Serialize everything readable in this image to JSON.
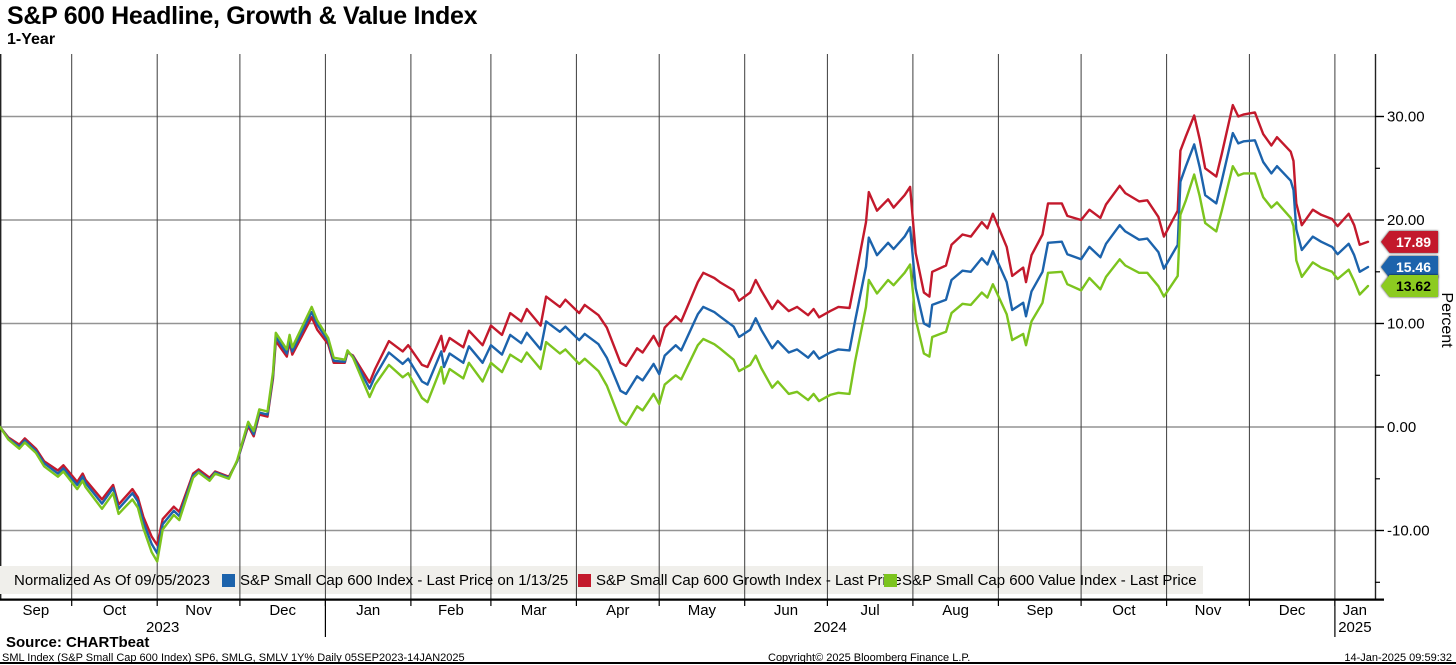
{
  "header": {
    "title": "S&P 600 Headline, Growth & Value Index",
    "subtitle": "1-Year"
  },
  "legend": {
    "normalized_label": "Normalized As Of 09/05/2023",
    "items": [
      {
        "label": "S&P Small Cap 600 Index - Last Price on 1/13/25",
        "color": "#1c63ac"
      },
      {
        "label": "S&P Small Cap 600 Growth Index - Last Price",
        "color": "#c3192c"
      },
      {
        "label": "S&P Small Cap 600 Value Index - Last Price",
        "color": "#7cc41e"
      }
    ]
  },
  "price_labels": [
    {
      "value": "17.89",
      "color": "#c3192c",
      "text_color": "#ffffff"
    },
    {
      "value": "15.46",
      "color": "#1c63ac",
      "text_color": "#ffffff"
    },
    {
      "value": "13.62",
      "color": "#8ccb20",
      "text_color": "#000000"
    }
  ],
  "footer": {
    "source": "Source: CHARTbeat",
    "description": "SML Index (S&P Small Cap 600 Index) SP6, SMLG, SMLV 1Y%  Daily 05SEP2023-14JAN2025",
    "copyright": "Copyright© 2025 Bloomberg Finance L.P.",
    "timestamp": "14-Jan-2025 09:59:32"
  },
  "chart_data": {
    "type": "line",
    "title": "S&P 600 Headline, Growth & Value Index",
    "period": "1-Year",
    "ylabel": "Percent",
    "grid": true,
    "legend_position": "bottom",
    "ylim": [
      -16.6,
      35.2
    ],
    "x_start": "2023-09-05",
    "x_end": "2025-01-14",
    "y_ticks_major": [
      {
        "v": 30,
        "label": "30.00"
      },
      {
        "v": 20,
        "label": "20.00"
      },
      {
        "v": 10,
        "label": "10.00"
      },
      {
        "v": 0,
        "label": "0.00"
      },
      {
        "v": -10,
        "label": "-10.00"
      }
    ],
    "y_ticks_minor": [
      25,
      15,
      5,
      -5,
      -15
    ],
    "month_labels": [
      "Sep",
      "Oct",
      "Nov",
      "Dec",
      "Jan",
      "Feb",
      "Mar",
      "Apr",
      "May",
      "Jun",
      "Jul",
      "Aug",
      "Sep",
      "Oct",
      "Nov",
      "Dec",
      "Jan"
    ],
    "year_labels": [
      "2023",
      "2024",
      "2025"
    ],
    "dates": [
      "2023-09-05",
      "2023-09-08",
      "2023-09-12",
      "2023-09-14",
      "2023-09-18",
      "2023-09-21",
      "2023-09-26",
      "2023-09-28",
      "2023-10-03",
      "2023-10-05",
      "2023-10-06",
      "2023-10-12",
      "2023-10-16",
      "2023-10-18",
      "2023-10-23",
      "2023-10-25",
      "2023-10-27",
      "2023-10-30",
      "2023-11-01",
      "2023-11-03",
      "2023-11-07",
      "2023-11-09",
      "2023-11-14",
      "2023-11-16",
      "2023-11-20",
      "2023-11-22",
      "2023-11-27",
      "2023-11-30",
      "2023-12-04",
      "2023-12-06",
      "2023-12-08",
      "2023-12-11",
      "2023-12-13",
      "2023-12-14",
      "2023-12-18",
      "2023-12-19",
      "2023-12-20",
      "2023-12-27",
      "2023-12-29",
      "2024-01-02",
      "2024-01-04",
      "2024-01-08",
      "2024-01-09",
      "2024-01-11",
      "2024-01-17",
      "2024-01-19",
      "2024-01-24",
      "2024-01-29",
      "2024-01-31",
      "2024-02-05",
      "2024-02-07",
      "2024-02-12",
      "2024-02-13",
      "2024-02-15",
      "2024-02-20",
      "2024-02-22",
      "2024-02-27",
      "2024-03-01",
      "2024-03-05",
      "2024-03-08",
      "2024-03-12",
      "2024-03-14",
      "2024-03-19",
      "2024-03-21",
      "2024-03-26",
      "2024-03-28",
      "2024-04-02",
      "2024-04-04",
      "2024-04-09",
      "2024-04-12",
      "2024-04-17",
      "2024-04-19",
      "2024-04-23",
      "2024-04-25",
      "2024-04-29",
      "2024-05-01",
      "2024-05-03",
      "2024-05-07",
      "2024-05-09",
      "2024-05-15",
      "2024-05-17",
      "2024-05-21",
      "2024-05-23",
      "2024-05-28",
      "2024-05-30",
      "2024-06-03",
      "2024-06-05",
      "2024-06-07",
      "2024-06-11",
      "2024-06-13",
      "2024-06-17",
      "2024-06-20",
      "2024-06-24",
      "2024-06-26",
      "2024-06-28",
      "2024-07-02",
      "2024-07-05",
      "2024-07-09",
      "2024-07-11",
      "2024-07-15",
      "2024-07-16",
      "2024-07-19",
      "2024-07-23",
      "2024-07-25",
      "2024-07-29",
      "2024-07-31",
      "2024-08-02",
      "2024-08-05",
      "2024-08-07",
      "2024-08-08",
      "2024-08-13",
      "2024-08-15",
      "2024-08-19",
      "2024-08-22",
      "2024-08-26",
      "2024-08-28",
      "2024-08-30",
      "2024-09-04",
      "2024-09-06",
      "2024-09-10",
      "2024-09-11",
      "2024-09-13",
      "2024-09-17",
      "2024-09-19",
      "2024-09-24",
      "2024-09-26",
      "2024-10-01",
      "2024-10-04",
      "2024-10-08",
      "2024-10-10",
      "2024-10-15",
      "2024-10-17",
      "2024-10-22",
      "2024-10-25",
      "2024-10-29",
      "2024-10-31",
      "2024-11-05",
      "2024-11-06",
      "2024-11-08",
      "2024-11-11",
      "2024-11-13",
      "2024-11-15",
      "2024-11-19",
      "2024-11-21",
      "2024-11-25",
      "2024-11-27",
      "2024-11-29",
      "2024-12-03",
      "2024-12-06",
      "2024-12-09",
      "2024-12-11",
      "2024-12-16",
      "2024-12-17",
      "2024-12-18",
      "2024-12-20",
      "2024-12-24",
      "2024-12-27",
      "2024-12-31",
      "2025-01-02",
      "2025-01-06",
      "2025-01-08",
      "2025-01-10",
      "2025-01-13"
    ],
    "series": [
      {
        "id": "sp-small-cap-600",
        "name": "S&P Small Cap 600 Index",
        "color": "#1c63ac",
        "last_price": 15.46,
        "values": [
          0.0,
          -1.1,
          -1.9,
          -1.3,
          -2.3,
          -3.5,
          -4.5,
          -4.0,
          -5.6,
          -4.8,
          -5.4,
          -7.4,
          -5.9,
          -7.9,
          -6.4,
          -7.2,
          -9.2,
          -11.3,
          -12.2,
          -9.4,
          -8.1,
          -8.6,
          -4.7,
          -4.3,
          -5.1,
          -4.4,
          -4.9,
          -3.3,
          0.3,
          -0.7,
          1.4,
          1.2,
          5.0,
          8.7,
          7.1,
          8.6,
          7.3,
          11.1,
          9.9,
          8.3,
          6.4,
          6.3,
          7.3,
          6.8,
          3.7,
          4.9,
          7.2,
          6.1,
          6.6,
          4.4,
          4.1,
          7.3,
          5.8,
          7.1,
          6.2,
          7.8,
          6.2,
          7.9,
          7.0,
          8.9,
          8.1,
          9.1,
          7.5,
          10.2,
          9.2,
          9.7,
          8.4,
          9.0,
          8.0,
          6.7,
          3.5,
          3.2,
          4.9,
          4.5,
          6.1,
          5.1,
          6.9,
          7.9,
          7.4,
          10.9,
          11.6,
          11.1,
          10.7,
          9.7,
          8.7,
          9.4,
          10.5,
          9.4,
          7.6,
          8.3,
          7.2,
          7.5,
          6.7,
          7.3,
          6.6,
          7.2,
          7.5,
          7.4,
          10.2,
          15.5,
          18.3,
          16.6,
          17.8,
          17.2,
          18.4,
          19.3,
          13.4,
          10.0,
          9.7,
          11.8,
          12.3,
          14.2,
          15.1,
          15.0,
          16.3,
          15.7,
          17.0,
          14.0,
          11.3,
          12.0,
          10.7,
          13.1,
          15.0,
          17.8,
          17.9,
          16.7,
          16.2,
          17.4,
          16.4,
          17.7,
          19.5,
          18.9,
          18.1,
          18.2,
          16.9,
          15.3,
          17.6,
          23.7,
          25.2,
          27.3,
          25.1,
          22.4,
          21.6,
          23.8,
          28.4,
          27.4,
          27.6,
          27.7,
          25.6,
          24.5,
          25.2,
          23.8,
          22.9,
          19.1,
          17.1,
          18.4,
          17.9,
          17.4,
          16.7,
          17.7,
          16.6,
          15.0,
          15.46
        ]
      },
      {
        "id": "sp-small-cap-600-growth",
        "name": "S&P Small Cap 600 Growth Index",
        "color": "#c3192c",
        "last_price": 17.89,
        "values": [
          0.0,
          -1.0,
          -1.7,
          -1.1,
          -2.1,
          -3.3,
          -4.2,
          -3.7,
          -5.3,
          -4.5,
          -5.1,
          -7.0,
          -5.6,
          -7.5,
          -6.0,
          -6.8,
          -8.7,
          -10.6,
          -11.4,
          -8.9,
          -7.7,
          -8.2,
          -4.5,
          -4.1,
          -4.9,
          -4.3,
          -4.8,
          -3.3,
          0.1,
          -0.9,
          1.2,
          1.0,
          4.7,
          8.3,
          6.8,
          8.2,
          7.0,
          10.6,
          9.4,
          8.0,
          6.2,
          6.2,
          7.2,
          6.9,
          4.3,
          5.6,
          8.3,
          7.3,
          7.9,
          6.0,
          5.8,
          8.8,
          7.3,
          8.6,
          7.7,
          9.3,
          7.9,
          9.8,
          8.9,
          11.0,
          10.2,
          11.4,
          9.8,
          12.6,
          11.6,
          12.3,
          11.0,
          11.8,
          10.8,
          9.6,
          6.2,
          5.9,
          7.6,
          7.2,
          8.8,
          7.8,
          9.6,
          10.7,
          10.2,
          14.0,
          14.9,
          14.4,
          14.0,
          13.2,
          12.2,
          13.0,
          14.2,
          13.2,
          11.4,
          12.2,
          11.2,
          11.6,
          10.8,
          11.4,
          10.6,
          11.2,
          11.6,
          11.5,
          14.2,
          19.8,
          22.7,
          20.9,
          22.0,
          21.2,
          22.4,
          23.2,
          16.8,
          13.0,
          12.6,
          15.0,
          15.6,
          17.6,
          18.6,
          18.4,
          19.8,
          19.2,
          20.6,
          17.4,
          14.6,
          15.4,
          14.0,
          16.6,
          18.6,
          21.6,
          21.6,
          20.4,
          20.0,
          21.0,
          20.2,
          21.5,
          23.3,
          22.6,
          21.8,
          21.9,
          20.3,
          18.4,
          20.9,
          26.7,
          28.1,
          30.1,
          27.8,
          25.0,
          24.2,
          26.4,
          31.1,
          30.0,
          30.2,
          30.4,
          28.3,
          27.2,
          28.0,
          26.6,
          25.7,
          21.6,
          19.5,
          21.0,
          20.5,
          20.1,
          19.4,
          20.6,
          19.5,
          17.6,
          17.89
        ]
      },
      {
        "id": "sp-small-cap-600-value",
        "name": "S&P Small Cap 600 Value Index",
        "color": "#7cc41e",
        "last_price": 13.62,
        "values": [
          0.0,
          -1.2,
          -2.1,
          -1.5,
          -2.5,
          -3.8,
          -4.8,
          -4.3,
          -6.0,
          -5.2,
          -5.8,
          -7.9,
          -6.4,
          -8.4,
          -7.0,
          -7.8,
          -9.8,
          -12.1,
          -13.0,
          -9.9,
          -8.5,
          -9.0,
          -4.9,
          -4.4,
          -5.2,
          -4.5,
          -5.0,
          -3.2,
          0.5,
          -0.4,
          1.7,
          1.5,
          5.3,
          9.1,
          7.5,
          8.9,
          7.7,
          11.6,
          10.3,
          8.6,
          6.7,
          6.5,
          7.4,
          6.7,
          2.9,
          4.1,
          6.0,
          4.8,
          5.2,
          2.8,
          2.4,
          5.8,
          4.2,
          5.6,
          4.7,
          6.2,
          4.4,
          6.2,
          5.3,
          7.0,
          6.3,
          7.2,
          5.6,
          8.2,
          7.1,
          7.5,
          6.1,
          6.6,
          5.4,
          4.0,
          0.6,
          0.2,
          2.0,
          1.6,
          3.2,
          2.2,
          4.1,
          5.0,
          4.6,
          7.9,
          8.5,
          8.0,
          7.6,
          6.5,
          5.4,
          6.0,
          6.9,
          5.7,
          3.8,
          4.4,
          3.2,
          3.4,
          2.6,
          3.2,
          2.5,
          3.1,
          3.3,
          3.2,
          6.3,
          11.6,
          14.2,
          12.9,
          14.2,
          13.7,
          14.9,
          15.7,
          10.4,
          7.1,
          6.8,
          8.7,
          9.2,
          11.0,
          11.9,
          11.8,
          13.0,
          12.5,
          13.8,
          10.9,
          8.4,
          9.0,
          7.9,
          10.2,
          12.0,
          14.9,
          15.0,
          13.8,
          13.2,
          14.4,
          13.3,
          14.5,
          16.2,
          15.6,
          14.9,
          14.9,
          13.6,
          12.6,
          14.6,
          20.5,
          21.9,
          24.4,
          22.3,
          19.7,
          18.9,
          20.9,
          25.2,
          24.3,
          24.5,
          24.5,
          22.2,
          21.2,
          21.7,
          20.2,
          19.4,
          16.1,
          14.5,
          15.9,
          15.4,
          15.0,
          14.3,
          15.2,
          14.1,
          12.8,
          13.62
        ]
      }
    ]
  }
}
